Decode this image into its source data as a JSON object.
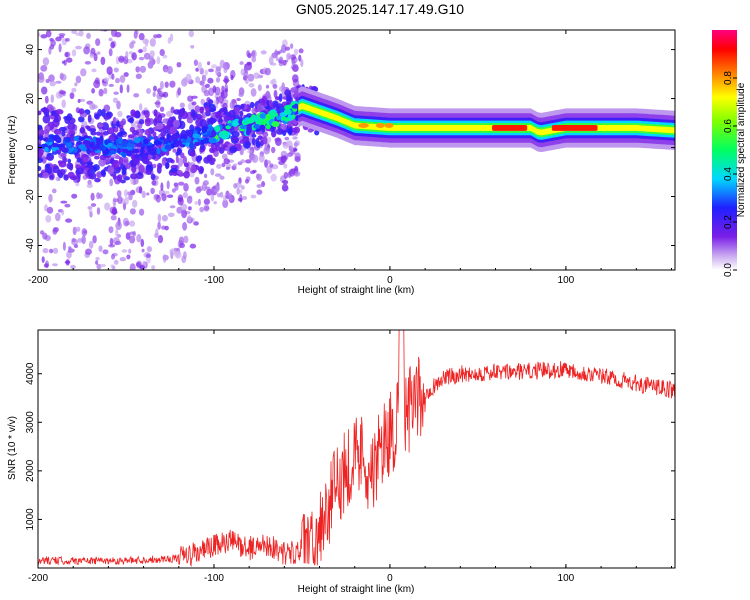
{
  "title": "GN05.2025.147.17.49.G10",
  "chart_data": [
    {
      "type": "heatmap",
      "xlabel": "Height of straight line (km)",
      "ylabel": "Frequency (Hz)",
      "xlim": [
        -200,
        162
      ],
      "ylim": [
        -50,
        48
      ],
      "x_ticks": [
        -200,
        -100,
        0,
        100
      ],
      "y_ticks": [
        -40,
        -20,
        0,
        20,
        40
      ],
      "colorbar": {
        "label": "Normalized spectral amplitude",
        "range": [
          0,
          1
        ],
        "ticks": [
          "0.0",
          "0.2",
          "0.4",
          "0.6",
          "0.8"
        ],
        "tick_values": [
          0,
          0.2,
          0.4,
          0.6,
          0.8
        ],
        "colormap": "rainbow (white-purple-blue-cyan-green-yellow-red-magenta)"
      },
      "ridge": [
        {
          "x": -200,
          "y": 2
        },
        {
          "x": -150,
          "y": 0
        },
        {
          "x": -120,
          "y": 2
        },
        {
          "x": -100,
          "y": 6
        },
        {
          "x": -80,
          "y": 9
        },
        {
          "x": -60,
          "y": 13
        },
        {
          "x": -50,
          "y": 17
        },
        {
          "x": -30,
          "y": 12
        },
        {
          "x": -20,
          "y": 9
        },
        {
          "x": 0,
          "y": 8
        },
        {
          "x": 40,
          "y": 8
        },
        {
          "x": 80,
          "y": 8
        },
        {
          "x": 85,
          "y": 6
        },
        {
          "x": 100,
          "y": 8
        },
        {
          "x": 140,
          "y": 8
        },
        {
          "x": 162,
          "y": 7
        }
      ]
    },
    {
      "type": "line",
      "xlabel": "Height of straight line (km)",
      "ylabel": "SNR (10 * v/v)",
      "xlim": [
        -200,
        162
      ],
      "ylim": [
        0,
        4900
      ],
      "x_ticks": [
        -200,
        -100,
        0,
        100
      ],
      "y_ticks": [
        1000,
        2000,
        3000,
        4000
      ],
      "color": "#ee2222",
      "series": [
        {
          "x": [
            -200,
            -150,
            -120,
            -110,
            -100,
            -90,
            -80,
            -70,
            -60,
            -50,
            -45,
            -40,
            -35,
            -30,
            -25,
            -20,
            -15,
            -10,
            -5,
            0,
            5,
            10,
            20,
            30,
            40,
            60,
            80,
            100,
            120,
            140,
            162
          ],
          "y": [
            150,
            150,
            200,
            300,
            450,
            550,
            400,
            500,
            300,
            350,
            500,
            900,
            1200,
            1700,
            2100,
            2300,
            2400,
            1800,
            2500,
            2800,
            3000,
            3200,
            3600,
            3900,
            4000,
            4020,
            4050,
            4100,
            3950,
            3800,
            3650
          ]
        }
      ]
    }
  ]
}
